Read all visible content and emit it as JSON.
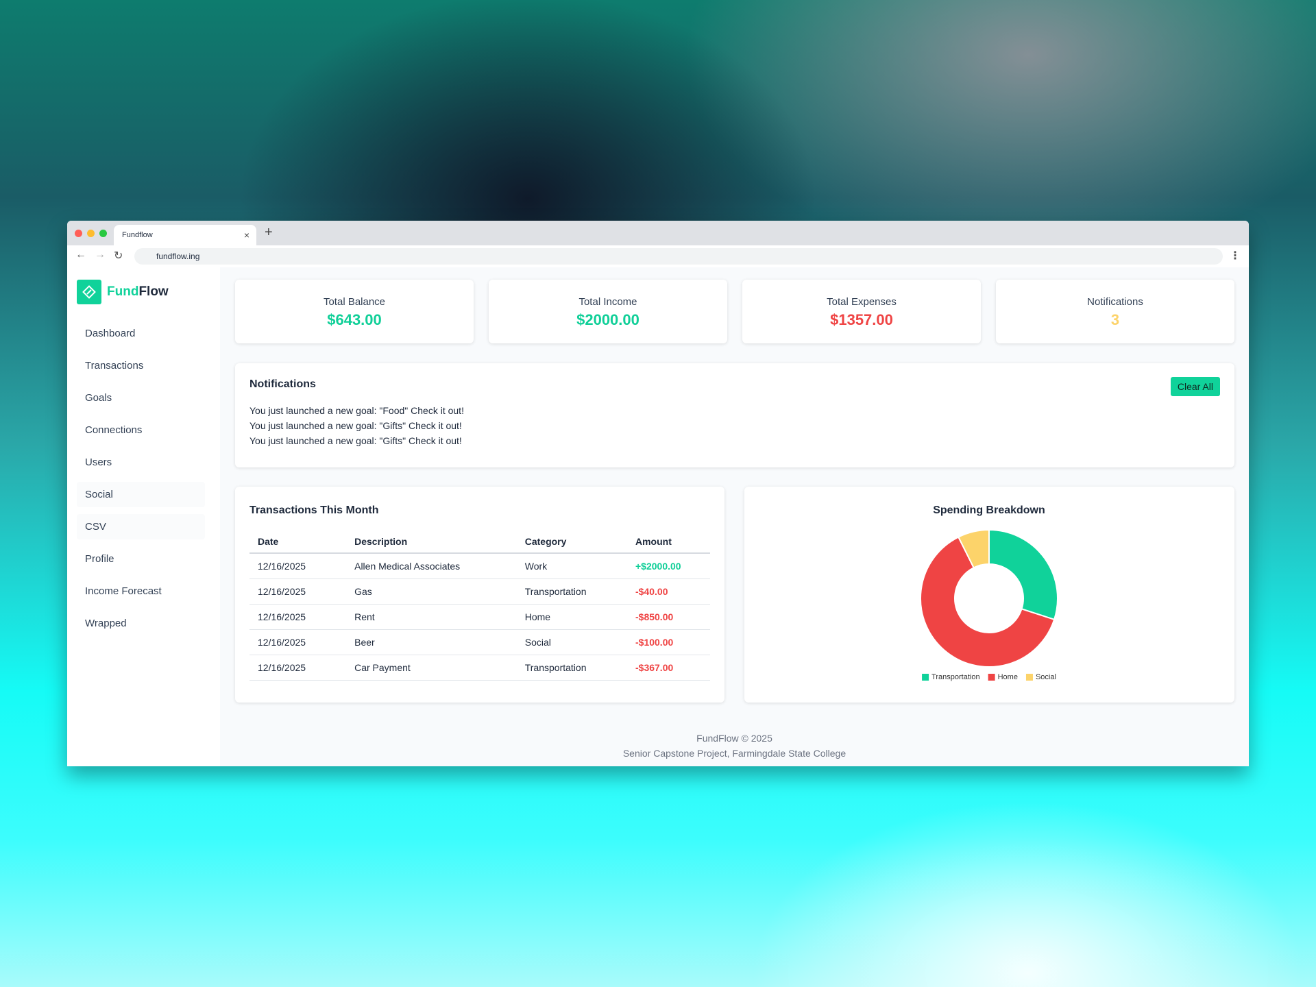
{
  "browser": {
    "tab_title": "Fundflow",
    "url": "fundflow.ing"
  },
  "sidebar": {
    "logo": {
      "part1": "Fund",
      "part2": "Flow"
    },
    "nav": [
      "Dashboard",
      "Transactions",
      "Goals",
      "Connections",
      "Users",
      "Social",
      "CSV",
      "Profile",
      "Income Forecast",
      "Wrapped"
    ]
  },
  "stats": [
    {
      "label": "Total Balance",
      "value": "$643.00",
      "color": "#10cf98"
    },
    {
      "label": "Total Income",
      "value": "$2000.00",
      "color": "#10cf98"
    },
    {
      "label": "Total Expenses",
      "value": "$1357.00",
      "color": "#ef4444"
    },
    {
      "label": "Notifications",
      "value": "3",
      "color": "#fcd36a"
    }
  ],
  "notifications": {
    "title": "Notifications",
    "button": "Clear All",
    "items": [
      "You just launched a new goal: \"Food\" Check it out!",
      "You just launched a new goal: \"Gifts\" Check it out!",
      "You just launched a new goal: \"Gifts\" Check it out!"
    ]
  },
  "transactions": {
    "title": "Transactions This Month",
    "columns": [
      "Date",
      "Description",
      "Category",
      "Amount"
    ],
    "rows": [
      [
        "12/16/2025",
        "Allen Medical Associates",
        "Work",
        "+$2000.00"
      ],
      [
        "12/16/2025",
        "Gas",
        "Transportation",
        "-$40.00"
      ],
      [
        "12/16/2025",
        "Rent",
        "Home",
        "-$850.00"
      ],
      [
        "12/16/2025",
        "Beer",
        "Social",
        "-$100.00"
      ],
      [
        "12/16/2025",
        "Car Payment",
        "Transportation",
        "-$367.00"
      ]
    ],
    "positive_color": "#10cf98",
    "negative_color": "#ef4444"
  },
  "chart_data": {
    "type": "pie",
    "donut": true,
    "title": "Spending Breakdown",
    "categories": [
      "Transportation",
      "Home",
      "Social"
    ],
    "values": [
      407,
      850,
      100
    ],
    "colors": [
      "#10d29a",
      "#ef4444",
      "#fcd36a"
    ],
    "legend": "bottom"
  },
  "footer": {
    "line1": "FundFlow © 2025",
    "line2": "Senior Capstone Project, Farmingdale State College"
  }
}
